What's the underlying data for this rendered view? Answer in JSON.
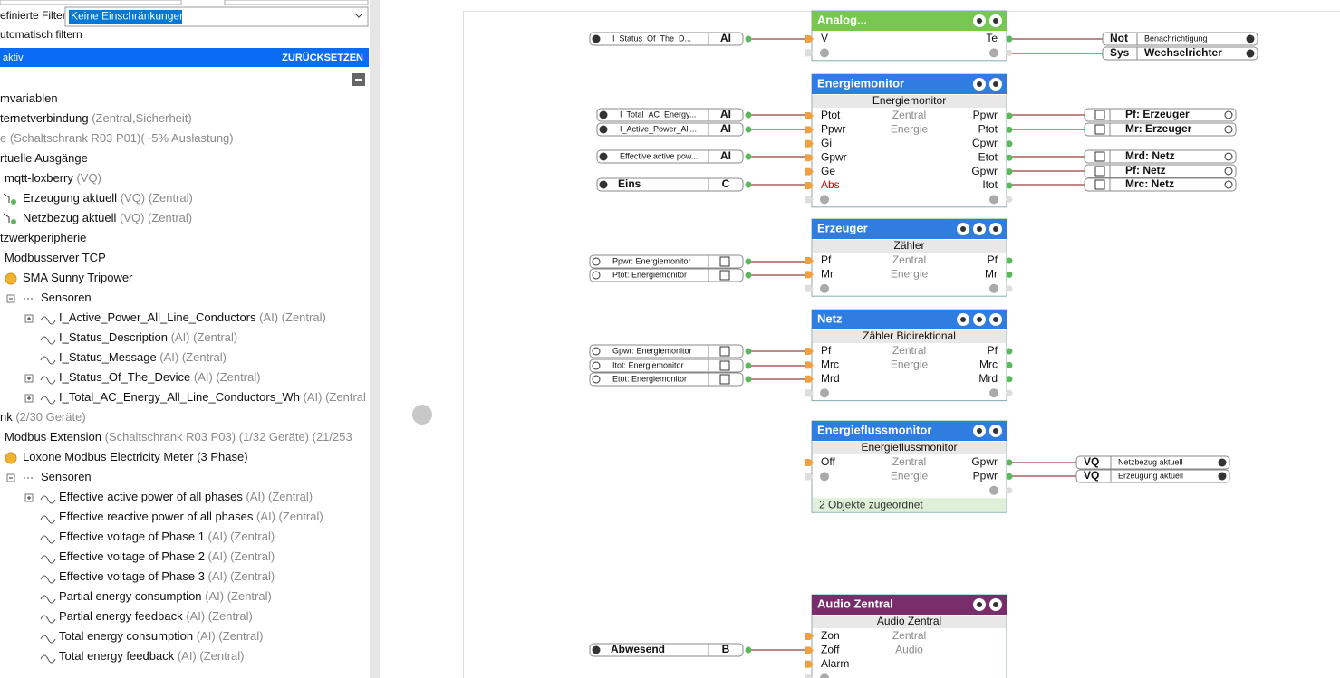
{
  "filter": {
    "label": "efinierte Filter",
    "value": "Keine Einschränkungen",
    "auto": "utomatisch filtern"
  },
  "status_bar": {
    "text": "aktiv",
    "reset": "ZURÜCKSETZEN"
  },
  "tree": [
    {
      "name": "mvariablen"
    },
    {
      "name": "ternetverbindung",
      "detail": " (Zentral,Sicherheit)"
    },
    {
      "name": "e (Schaltschrank R03 P01)(~5% Auslastung)"
    },
    {
      "name": "rtuelle Ausgänge"
    },
    {
      "name": "mqtt-loxberry",
      "detail": " (VQ)"
    },
    {
      "name": "Erzeugung aktuell",
      "detail": " (VQ) (Zentral)"
    },
    {
      "name": "Netzbezug aktuell",
      "detail": " (VQ) (Zentral)"
    },
    {
      "name": "tzwerkperipherie"
    },
    {
      "name": "Modbusserver TCP"
    },
    {
      "name": "SMA Sunny Tripower"
    },
    {
      "name": "Sensoren"
    },
    {
      "name": "I_Active_Power_All_Line_Conductors",
      "detail": " (AI) (Zentral)"
    },
    {
      "name": "I_Status_Description",
      "detail": " (AI) (Zentral)"
    },
    {
      "name": "I_Status_Message",
      "detail": " (AI) (Zentral)"
    },
    {
      "name": "I_Status_Of_The_Device",
      "detail": " (AI) (Zentral)"
    },
    {
      "name": "I_Total_AC_Energy_All_Line_Conductors_Wh",
      "detail": " (AI) (Zentral"
    },
    {
      "name": "nk",
      "detail": " (2/30 Geräte)"
    },
    {
      "name": "Modbus Extension",
      "detail": " (Schaltschrank R03 P03) (1/32 Geräte) (21/253"
    },
    {
      "name": "Loxone Modbus Electricity Meter (3 Phase)"
    },
    {
      "name": "Sensoren"
    },
    {
      "name": "Effective active power of all phases",
      "detail": " (AI) (Zentral)"
    },
    {
      "name": "Effective reactive power of all phases",
      "detail": " (AI) (Zentral)"
    },
    {
      "name": "Effective voltage of Phase 1",
      "detail": " (AI) (Zentral)"
    },
    {
      "name": "Effective voltage of Phase 2",
      "detail": " (AI) (Zentral)"
    },
    {
      "name": "Effective voltage of Phase 3",
      "detail": " (AI) (Zentral)"
    },
    {
      "name": "Partial energy consumption",
      "detail": " (AI) (Zentral)"
    },
    {
      "name": "Partial energy feedback",
      "detail": " (AI) (Zentral)"
    },
    {
      "name": "Total energy consumption",
      "detail": " (AI) (Zentral)"
    },
    {
      "name": "Total energy feedback",
      "detail": " (AI) (Zentral)"
    }
  ],
  "blocks": [
    {
      "title": "Analog...",
      "inputs": [
        "V"
      ],
      "outputs": [
        "Te"
      ]
    },
    {
      "title": "Energiemonitor",
      "type": "Energiemonitor",
      "mid": [
        "Zentral",
        "Energie"
      ],
      "inputs": [
        "Ptot",
        "Ppwr",
        "Gi",
        "Gpwr",
        "Ge",
        "Abs"
      ],
      "outputs": [
        "Ppwr",
        "Ptot",
        "Cpwr",
        "Etot",
        "Gpwr",
        "Itot"
      ]
    },
    {
      "title": "Erzeuger",
      "type": "Zähler",
      "mid": [
        "Zentral",
        "Energie"
      ],
      "inputs": [
        "Pf",
        "Mr"
      ],
      "outputs": [
        "Pf",
        "Mr"
      ]
    },
    {
      "title": "Netz",
      "type": "Zähler Bidirektional",
      "mid": [
        "Zentral",
        "Energie"
      ],
      "inputs": [
        "Pf",
        "Mrc",
        "Mrd"
      ],
      "outputs": [
        "Pf",
        "Mrc",
        "Mrd"
      ]
    },
    {
      "title": "Energieflussmonitor",
      "type": "Energieflussmonitor",
      "mid": [
        "Zentral",
        "Energie"
      ],
      "inputs": [
        "Off"
      ],
      "outputs": [
        "Gpwr",
        "Ppwr"
      ],
      "footer": "2 Objekte zugeordnet"
    },
    {
      "title": "Audio Zentral",
      "type": "Audio Zentral",
      "mid": [
        "Zentral",
        "Audio"
      ],
      "inputs": [
        "Zon",
        "Zoff",
        "Alarm"
      ],
      "outputs": []
    }
  ],
  "left_refs": [
    {
      "name": "I_Status_Of_The_D...",
      "tag": "AI"
    },
    {
      "name": "I_Total_AC_Energy...",
      "tag": "AI"
    },
    {
      "name": "I_Active_Power_All...",
      "tag": "AI"
    },
    {
      "name": "Effective active pow...",
      "tag": "AI"
    },
    {
      "name": "Eins",
      "tag": "C"
    },
    {
      "name": "Ppwr: Energiemonitor"
    },
    {
      "name": "Ptot: Energiemonitor"
    },
    {
      "name": "Gpwr: Energiemonitor"
    },
    {
      "name": "Itot: Energiemonitor"
    },
    {
      "name": "Etot: Energiemonitor"
    },
    {
      "name": "Abwesend",
      "tag": "B"
    }
  ],
  "right_refs": [
    {
      "tag": "Not",
      "name": "Benachrichtigung"
    },
    {
      "tag": "Sys",
      "name": "Wechselrichter"
    },
    {
      "name": "Pf: Erzeuger"
    },
    {
      "name": "Mr: Erzeuger"
    },
    {
      "name": "Mrd: Netz"
    },
    {
      "name": "Pf: Netz"
    },
    {
      "name": "Mrc: Netz"
    },
    {
      "tag": "VQ",
      "name": "Netzbezug aktuell"
    },
    {
      "tag": "VQ",
      "name": "Erzeugung aktuell"
    }
  ]
}
